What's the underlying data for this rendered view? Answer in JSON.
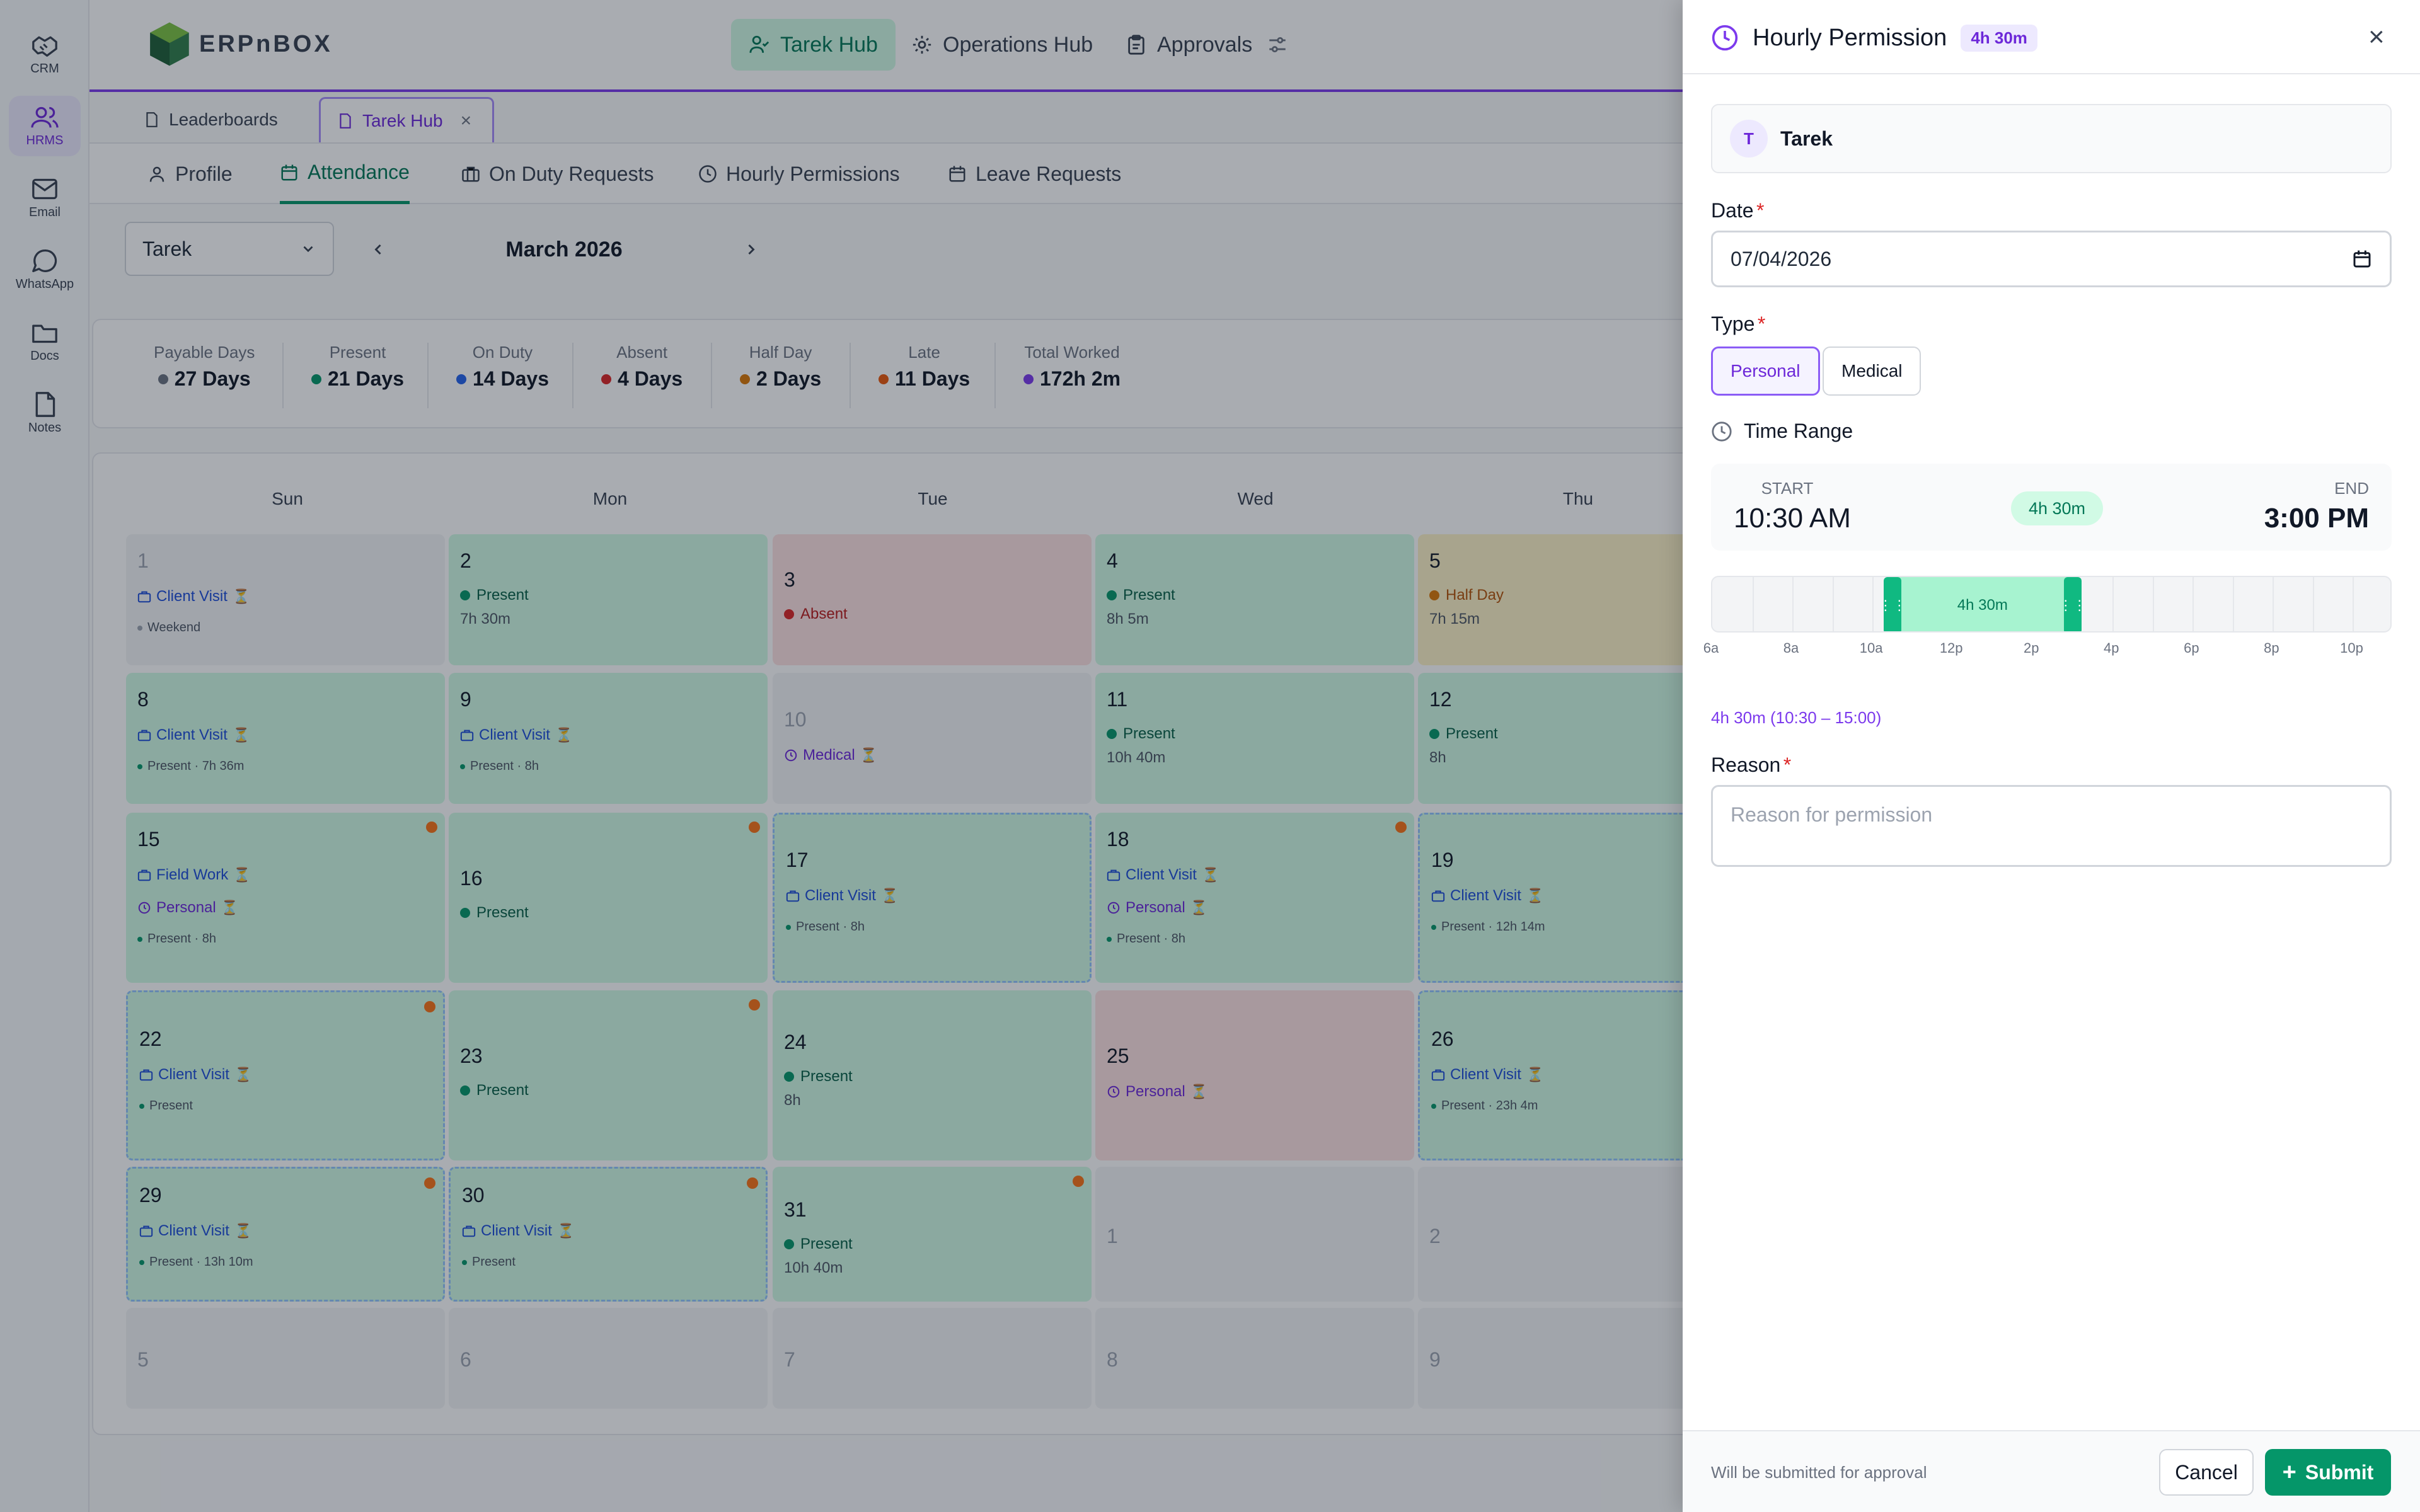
{
  "rail": {
    "items": [
      {
        "label": "CRM",
        "icon": "handshake-icon"
      },
      {
        "label": "HRMS",
        "icon": "users-icon",
        "active": true
      },
      {
        "label": "Email",
        "icon": "mail-icon"
      },
      {
        "label": "WhatsApp",
        "icon": "chat-icon"
      },
      {
        "label": "Docs",
        "icon": "folder-icon"
      },
      {
        "label": "Notes",
        "icon": "note-icon"
      }
    ]
  },
  "brand": {
    "logo_text": "ERPnBOX"
  },
  "hubs": [
    {
      "label": "Tarek Hub",
      "active": true
    },
    {
      "label": "Operations Hub"
    },
    {
      "label": "Approvals"
    }
  ],
  "window_tabs": [
    {
      "label": "Leaderboards"
    },
    {
      "label": "Tarek Hub",
      "active": true,
      "close": "×"
    }
  ],
  "sub_tabs": [
    {
      "label": "Profile"
    },
    {
      "label": "Attendance",
      "active": true
    },
    {
      "label": "On Duty Requests"
    },
    {
      "label": "Hourly Permissions"
    },
    {
      "label": "Leave Requests"
    }
  ],
  "filters": {
    "employee": "Tarek",
    "month": "March 2026"
  },
  "summary": [
    {
      "label": "Payable Days",
      "value": "27 Days",
      "color": "#6b7280"
    },
    {
      "label": "Present",
      "value": "21 Days",
      "color": "#059669"
    },
    {
      "label": "On Duty",
      "value": "14 Days",
      "color": "#2563eb"
    },
    {
      "label": "Absent",
      "value": "4 Days",
      "color": "#dc2626"
    },
    {
      "label": "Half Day",
      "value": "2 Days",
      "color": "#d97706"
    },
    {
      "label": "Late",
      "value": "11 Days",
      "color": "#ea580c"
    },
    {
      "label": "Total Worked",
      "value": "172h 2m",
      "color": "#7c3aed"
    }
  ],
  "calendar": {
    "weekdays": [
      "Sun",
      "Mon",
      "Tue",
      "Wed",
      "Thu"
    ],
    "hourglass": "⏳",
    "days": {
      "d1": {
        "num": "1",
        "chip": "Client Visit",
        "note": "Weekend"
      },
      "d2": {
        "num": "2",
        "status": "Present",
        "hours": "7h 30m"
      },
      "d3": {
        "num": "3",
        "status": "Absent"
      },
      "d4": {
        "num": "4",
        "status": "Present",
        "hours": "8h 5m"
      },
      "d5": {
        "num": "5",
        "status": "Half Day",
        "hours": "7h 15m"
      },
      "d8": {
        "num": "8",
        "chip": "Client Visit",
        "note": "Present · 7h 36m"
      },
      "d9": {
        "num": "9",
        "chip": "Client Visit",
        "note": "Present · 8h"
      },
      "d10": {
        "num": "10",
        "chip": "Medical"
      },
      "d11": {
        "num": "11",
        "status": "Present",
        "hours": "10h 40m"
      },
      "d12": {
        "num": "12",
        "status": "Present",
        "hours": "8h"
      },
      "d15": {
        "num": "15",
        "chip": "Field Work",
        "chip2": "Personal",
        "note": "Present · 8h"
      },
      "d16": {
        "num": "16",
        "status": "Present"
      },
      "d17": {
        "num": "17",
        "chip": "Client Visit",
        "note": "Present · 8h"
      },
      "d18": {
        "num": "18",
        "chip": "Client Visit",
        "chip2": "Personal",
        "note": "Present · 8h"
      },
      "d19": {
        "num": "19",
        "chip": "Client Visit",
        "note": "Present · 12h 14m"
      },
      "d22": {
        "num": "22",
        "chip": "Client Visit",
        "note": "Present"
      },
      "d23": {
        "num": "23",
        "status": "Present"
      },
      "d24": {
        "num": "24",
        "status": "Present",
        "hours": "8h"
      },
      "d25": {
        "num": "25",
        "chip": "Personal"
      },
      "d26": {
        "num": "26",
        "chip": "Client Visit",
        "note": "Present · 23h 4m"
      },
      "d29": {
        "num": "29",
        "chip": "Client Visit",
        "note": "Present · 13h 10m"
      },
      "d30": {
        "num": "30",
        "chip": "Client Visit",
        "note": "Present"
      },
      "d31": {
        "num": "31",
        "status": "Present",
        "hours": "10h 40m"
      },
      "n1": {
        "num": "1"
      },
      "n2": {
        "num": "2"
      },
      "n5": {
        "num": "5"
      },
      "n6": {
        "num": "6"
      },
      "n7": {
        "num": "7"
      },
      "n8": {
        "num": "8"
      },
      "n9": {
        "num": "9"
      }
    }
  },
  "drawer": {
    "title": "Hourly Permission",
    "duration_badge": "4h 30m",
    "close": "×",
    "user": {
      "initial": "T",
      "name": "Tarek"
    },
    "date": {
      "label": "Date",
      "required": "*",
      "value": "07/04/2026"
    },
    "type": {
      "label": "Type",
      "required": "*",
      "options": [
        "Personal",
        "Medical"
      ],
      "selected": "Personal"
    },
    "time_range": {
      "label": "Time Range",
      "start_label": "START",
      "start": "10:30 AM",
      "end_label": "END",
      "end": "3:00 PM",
      "duration": "4h 30m",
      "axis_ticks": [
        "6a",
        "8a",
        "10a",
        "12p",
        "2p",
        "4p",
        "6p",
        "8p",
        "10p"
      ],
      "selection_start_hour": 10.5,
      "selection_end_hour": 15,
      "axis_start_hour": 6,
      "axis_end_hour": 23,
      "summary": "4h 30m (10:30 – 15:00)"
    },
    "reason": {
      "label": "Reason",
      "required": "*",
      "placeholder": "Reason for permission"
    },
    "footer": {
      "note": "Will be submitted for approval",
      "cancel": "Cancel",
      "submit": "Submit",
      "submit_icon": "+"
    }
  }
}
